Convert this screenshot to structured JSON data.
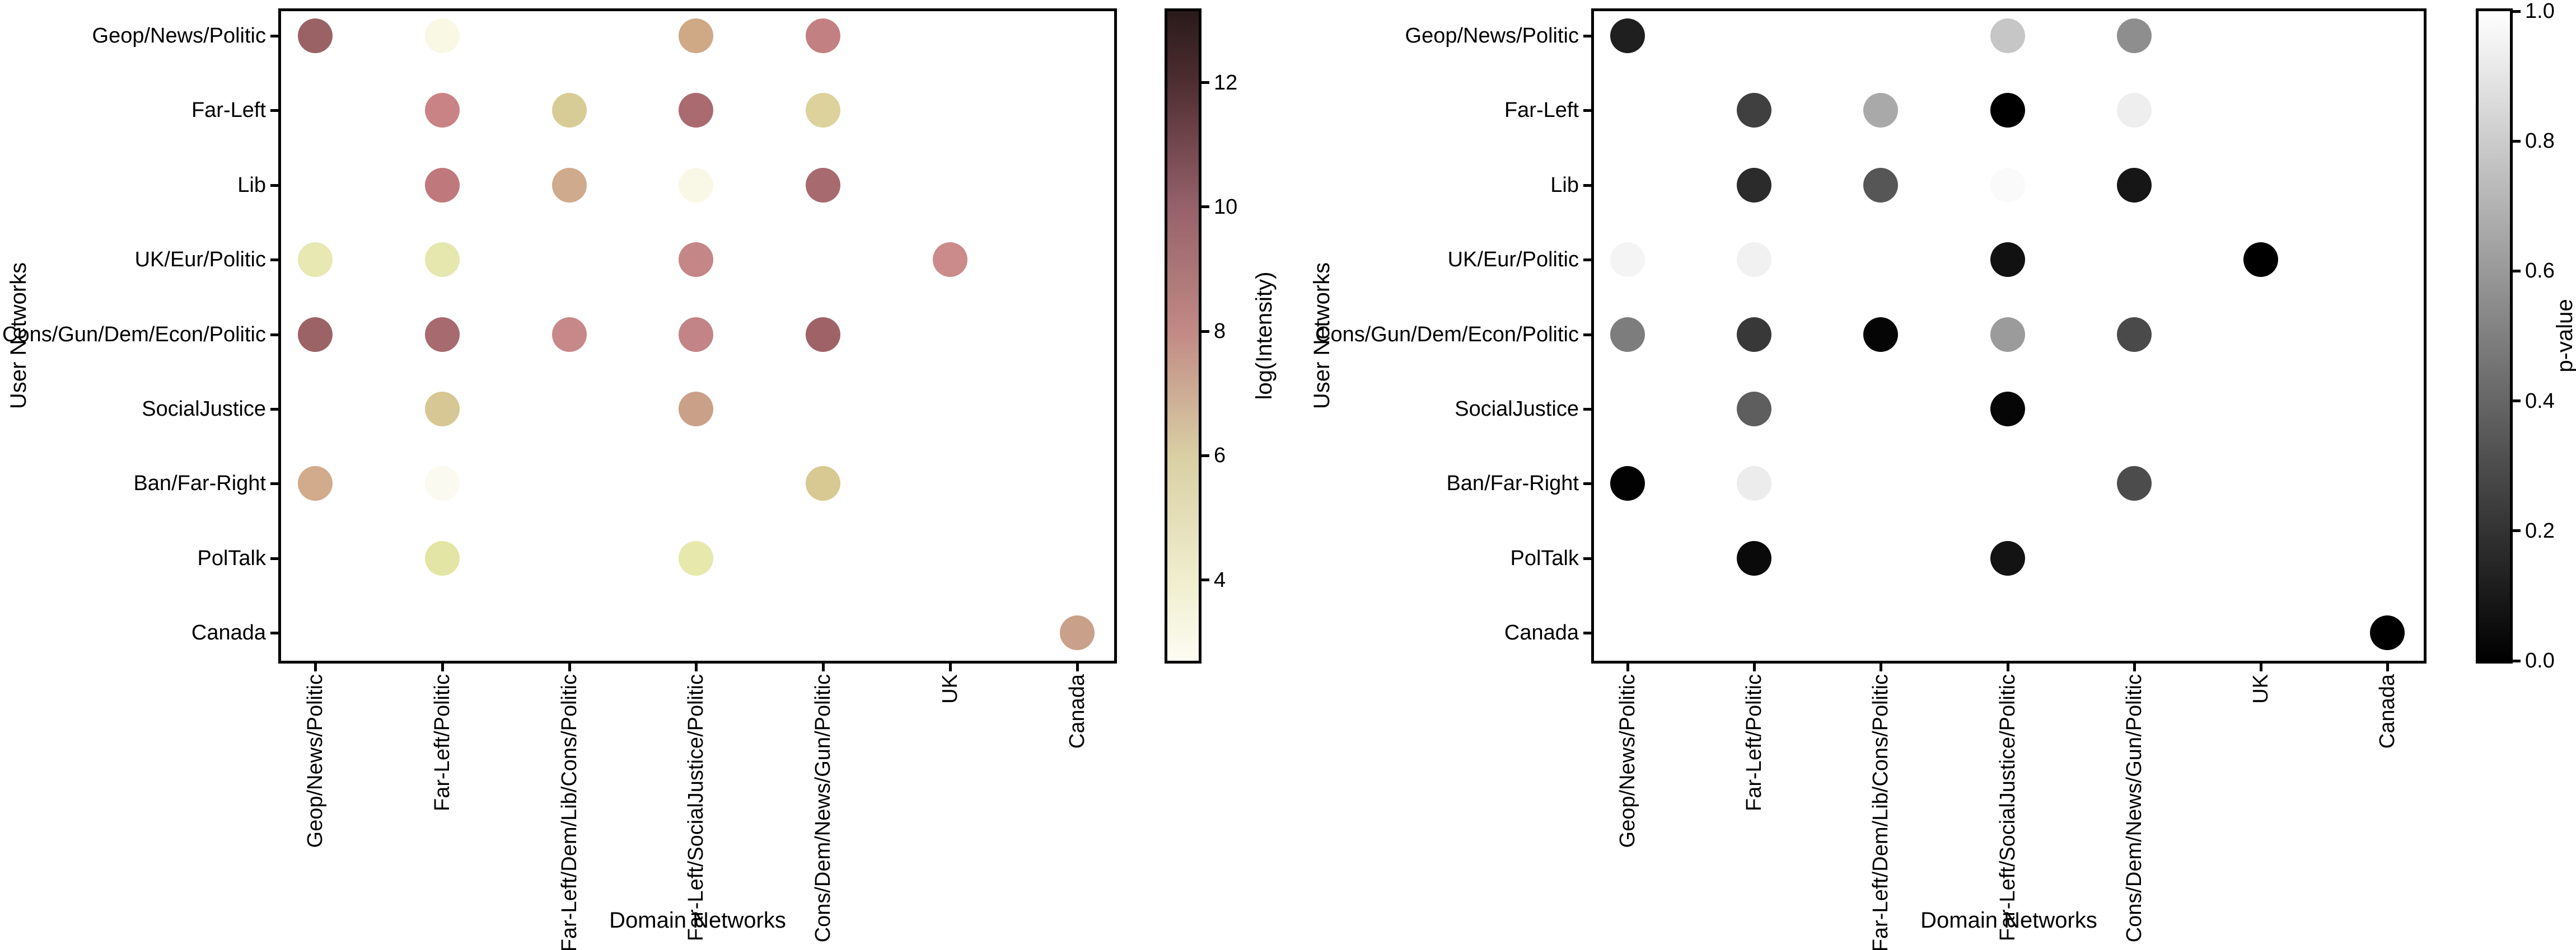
{
  "figure": {
    "background": "#ffffff",
    "text_color": "#000000"
  },
  "chart_data": [
    {
      "type": "scatter",
      "panel": "left",
      "xlabel": "Domain Networks",
      "ylabel": "User Networks",
      "grid": false,
      "x_categories": [
        "Geop/News/Politic",
        "Far-Left/Politic",
        "Far-Left/Dem/Lib/Cons/Politic",
        "Far-Left/SocialJustice/Politic",
        "Cons/Dem/News/Gun/Politic",
        "UK",
        "Canada"
      ],
      "y_categories": [
        "Geop/News/Politic",
        "Far-Left",
        "Lib",
        "UK/Eur/Politic",
        "Cons/Gun/Dem/Econ/Politic",
        "SocialJustice",
        "Ban/Far-Right",
        "PolTalk",
        "Canada"
      ],
      "colorbar": {
        "label": "log(Intensity)",
        "vmin": 2.7,
        "vmax": 13.15,
        "ticks": [
          {
            "value": 12,
            "label": "12"
          },
          {
            "value": 10,
            "label": "10"
          },
          {
            "value": 8,
            "label": "8"
          },
          {
            "value": 6,
            "label": "6"
          },
          {
            "value": 4,
            "label": "4"
          }
        ],
        "gradient": [
          [
            0,
            "#2a1a1b"
          ],
          [
            0.11,
            "#4e2e30"
          ],
          [
            0.301,
            "#96616a"
          ],
          [
            0.493,
            "#c18a85"
          ],
          [
            0.684,
            "#d9cfa3"
          ],
          [
            0.876,
            "#f0eecd"
          ],
          [
            1,
            "#fdfcf2"
          ]
        ]
      },
      "points": [
        {
          "domain": 0,
          "user": 0,
          "color": "#9a6265",
          "value": 9.6
        },
        {
          "domain": 0,
          "user": 3,
          "color": "#e7e8b2",
          "value": 5.1
        },
        {
          "domain": 0,
          "user": 4,
          "color": "#9b6366",
          "value": 9.6
        },
        {
          "domain": 0,
          "user": 6,
          "color": "#d2aa8c",
          "value": 7.1
        },
        {
          "domain": 1,
          "user": 0,
          "color": "#f9f8e4",
          "value": 3.5
        },
        {
          "domain": 1,
          "user": 1,
          "color": "#c98384",
          "value": 8.2
        },
        {
          "domain": 1,
          "user": 2,
          "color": "#bf787c",
          "value": 8.6
        },
        {
          "domain": 1,
          "user": 3,
          "color": "#e5e7ae",
          "value": 5.2
        },
        {
          "domain": 1,
          "user": 4,
          "color": "#a66a6f",
          "value": 9.3
        },
        {
          "domain": 1,
          "user": 5,
          "color": "#d7c795",
          "value": 6.2
        },
        {
          "domain": 1,
          "user": 6,
          "color": "#fbfaf0",
          "value": 3.0
        },
        {
          "domain": 1,
          "user": 7,
          "color": "#e3e5a4",
          "value": 5.4
        },
        {
          "domain": 2,
          "user": 1,
          "color": "#d8cc96",
          "value": 6.1
        },
        {
          "domain": 2,
          "user": 2,
          "color": "#d0aa8c",
          "value": 7.0
        },
        {
          "domain": 2,
          "user": 4,
          "color": "#c68889",
          "value": 8.1
        },
        {
          "domain": 3,
          "user": 0,
          "color": "#cfa886",
          "value": 7.0
        },
        {
          "domain": 3,
          "user": 1,
          "color": "#a96a70",
          "value": 9.2
        },
        {
          "domain": 3,
          "user": 2,
          "color": "#f9f8e6",
          "value": 3.4
        },
        {
          "domain": 3,
          "user": 3,
          "color": "#c58688",
          "value": 8.2
        },
        {
          "domain": 3,
          "user": 4,
          "color": "#c28486",
          "value": 8.3
        },
        {
          "domain": 3,
          "user": 5,
          "color": "#cba088",
          "value": 7.3
        },
        {
          "domain": 3,
          "user": 7,
          "color": "#e7e8ab",
          "value": 5.1
        },
        {
          "domain": 4,
          "user": 0,
          "color": "#c28082",
          "value": 8.5
        },
        {
          "domain": 4,
          "user": 1,
          "color": "#ddd29c",
          "value": 6.0
        },
        {
          "domain": 4,
          "user": 2,
          "color": "#a76a6e",
          "value": 9.3
        },
        {
          "domain": 4,
          "user": 4,
          "color": "#9f6367",
          "value": 9.5
        },
        {
          "domain": 4,
          "user": 6,
          "color": "#d7c991",
          "value": 6.2
        },
        {
          "domain": 5,
          "user": 3,
          "color": "#cb8b8b",
          "value": 8.0
        },
        {
          "domain": 6,
          "user": 8,
          "color": "#c9a089",
          "value": 7.4
        }
      ]
    },
    {
      "type": "scatter",
      "panel": "right",
      "xlabel": "Domain Networks",
      "ylabel": "User Networks",
      "grid": false,
      "x_categories": [
        "Geop/News/Politic",
        "Far-Left/Politic",
        "Far-Left/Dem/Lib/Cons/Politic",
        "Far-Left/SocialJustice/Politic",
        "Cons/Dem/News/Gun/Politic",
        "UK",
        "Canada"
      ],
      "y_categories": [
        "Geop/News/Politic",
        "Far-Left",
        "Lib",
        "UK/Eur/Politic",
        "Cons/Gun/Dem/Econ/Politic",
        "SocialJustice",
        "Ban/Far-Right",
        "PolTalk",
        "Canada"
      ],
      "colorbar": {
        "label": "p-value",
        "vmin": 0.0,
        "vmax": 1.0,
        "ticks": [
          {
            "value": 1.0,
            "label": "1.0"
          },
          {
            "value": 0.8,
            "label": "0.8"
          },
          {
            "value": 0.6,
            "label": "0.6"
          },
          {
            "value": 0.4,
            "label": "0.4"
          },
          {
            "value": 0.2,
            "label": "0.2"
          },
          {
            "value": 0.0,
            "label": "0.0"
          }
        ],
        "gradient": [
          [
            0,
            "#ffffff"
          ],
          [
            1,
            "#000000"
          ]
        ]
      },
      "points": [
        {
          "domain": 0,
          "user": 0,
          "color": "#1f1f1f",
          "value": 0.12
        },
        {
          "domain": 0,
          "user": 3,
          "color": "#f4f4f4",
          "value": 0.96
        },
        {
          "domain": 0,
          "user": 4,
          "color": "#7d7d7d",
          "value": 0.49
        },
        {
          "domain": 0,
          "user": 6,
          "color": "#020202",
          "value": 0.01
        },
        {
          "domain": 1,
          "user": 1,
          "color": "#404040",
          "value": 0.25
        },
        {
          "domain": 1,
          "user": 2,
          "color": "#2b2b2b",
          "value": 0.17
        },
        {
          "domain": 1,
          "user": 3,
          "color": "#f1f1f1",
          "value": 0.95
        },
        {
          "domain": 1,
          "user": 4,
          "color": "#383838",
          "value": 0.22
        },
        {
          "domain": 1,
          "user": 5,
          "color": "#5e5e5e",
          "value": 0.37
        },
        {
          "domain": 1,
          "user": 6,
          "color": "#ececec",
          "value": 0.93
        },
        {
          "domain": 1,
          "user": 7,
          "color": "#0a0a0a",
          "value": 0.04
        },
        {
          "domain": 2,
          "user": 1,
          "color": "#a9a9a9",
          "value": 0.66
        },
        {
          "domain": 2,
          "user": 2,
          "color": "#565656",
          "value": 0.34
        },
        {
          "domain": 2,
          "user": 4,
          "color": "#050505",
          "value": 0.02
        },
        {
          "domain": 3,
          "user": 0,
          "color": "#c6c6c6",
          "value": 0.78
        },
        {
          "domain": 3,
          "user": 1,
          "color": "#000000",
          "value": 0.0
        },
        {
          "domain": 3,
          "user": 2,
          "color": "#fafafa",
          "value": 0.98
        },
        {
          "domain": 3,
          "user": 3,
          "color": "#111111",
          "value": 0.07
        },
        {
          "domain": 3,
          "user": 4,
          "color": "#9b9b9b",
          "value": 0.61
        },
        {
          "domain": 3,
          "user": 5,
          "color": "#060606",
          "value": 0.02
        },
        {
          "domain": 3,
          "user": 7,
          "color": "#131313",
          "value": 0.07
        },
        {
          "domain": 4,
          "user": 0,
          "color": "#8e8e8e",
          "value": 0.56
        },
        {
          "domain": 4,
          "user": 1,
          "color": "#eeeeee",
          "value": 0.93
        },
        {
          "domain": 4,
          "user": 2,
          "color": "#161616",
          "value": 0.09
        },
        {
          "domain": 4,
          "user": 4,
          "color": "#4a4a4a",
          "value": 0.29
        },
        {
          "domain": 4,
          "user": 6,
          "color": "#4c4c4c",
          "value": 0.3
        },
        {
          "domain": 5,
          "user": 3,
          "color": "#000000",
          "value": 0.0
        },
        {
          "domain": 6,
          "user": 8,
          "color": "#000000",
          "value": 0.0
        }
      ]
    }
  ]
}
